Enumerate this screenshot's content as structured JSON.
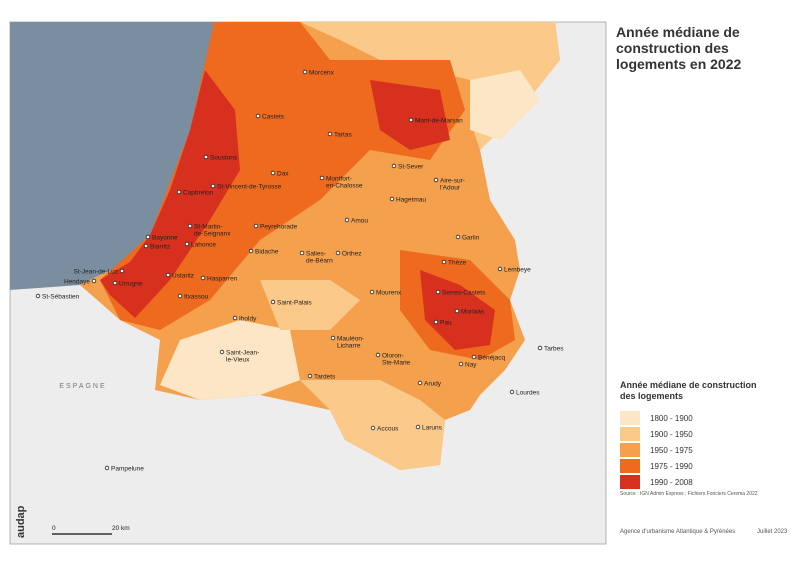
{
  "title": "Année médiane de construction des logements en 2022",
  "places": [
    {
      "lines": [
        "Morcenx"
      ]
    },
    {
      "lines": [
        "Castets"
      ]
    },
    {
      "lines": [
        "Mont-de-Marsan"
      ]
    },
    {
      "lines": [
        "Tartas"
      ]
    },
    {
      "lines": [
        "Soustons"
      ]
    },
    {
      "lines": [
        "St-Sever"
      ]
    },
    {
      "lines": [
        "Dax"
      ]
    },
    {
      "lines": [
        "Montfort-",
        "en-Chalosse"
      ]
    },
    {
      "lines": [
        "Aire-sur-",
        "l'Adour"
      ]
    },
    {
      "lines": [
        "St-Vincent-de-Tyrosse"
      ]
    },
    {
      "lines": [
        "Capbreton"
      ]
    },
    {
      "lines": [
        "Hagetmau"
      ]
    },
    {
      "lines": [
        "Amou"
      ]
    },
    {
      "lines": [
        "St-Martin-",
        "de-Seignanx"
      ]
    },
    {
      "lines": [
        "Peyrehorade"
      ]
    },
    {
      "lines": [
        "Garlin"
      ]
    },
    {
      "lines": [
        "Bayonne"
      ]
    },
    {
      "lines": [
        "Biarritz"
      ]
    },
    {
      "lines": [
        "Lahonce"
      ]
    },
    {
      "lines": [
        "Salies-",
        "de-Béarn"
      ]
    },
    {
      "lines": [
        "Orthez"
      ]
    },
    {
      "lines": [
        "Bidache"
      ]
    },
    {
      "lines": [
        "St-Jean-de-Luz"
      ]
    },
    {
      "lines": [
        "Hendaye"
      ]
    },
    {
      "lines": [
        "Urrugne"
      ]
    },
    {
      "lines": [
        "Ustaritz"
      ]
    },
    {
      "lines": [
        "Hasparren"
      ]
    },
    {
      "lines": [
        "Thèze"
      ]
    },
    {
      "lines": [
        "Lembeye"
      ]
    },
    {
      "lines": [
        "Mourenx"
      ]
    },
    {
      "lines": [
        "Serres-Castets"
      ]
    },
    {
      "lines": [
        "Itxassou"
      ]
    },
    {
      "lines": [
        "St-Sébastien"
      ]
    },
    {
      "lines": [
        "Saint-Palais"
      ]
    },
    {
      "lines": [
        "Iholdy"
      ]
    },
    {
      "lines": [
        "Morlaàs"
      ]
    },
    {
      "lines": [
        "Pau"
      ]
    },
    {
      "lines": [
        "Mauléon-",
        "Licharre"
      ]
    },
    {
      "lines": [
        "Saint-Jean-",
        "le-Vieux"
      ]
    },
    {
      "lines": [
        "Oloron-",
        "Ste-Marie"
      ]
    },
    {
      "lines": [
        "Tarbes"
      ]
    },
    {
      "lines": [
        "Bénéjacq"
      ]
    },
    {
      "lines": [
        "Nay"
      ]
    },
    {
      "lines": [
        "Tardets"
      ]
    },
    {
      "lines": [
        "Arudy"
      ]
    },
    {
      "lines": [
        "Lourdes"
      ]
    },
    {
      "lines": [
        "Accous"
      ]
    },
    {
      "lines": [
        "Laruns"
      ]
    },
    {
      "lines": [
        "Pampelune"
      ]
    }
  ],
  "country_label": "ESPAGNE",
  "legend": {
    "title": "Année médiane de construction des logements",
    "items": [
      {
        "label": "1800 - 1900",
        "color": "#fde6c6"
      },
      {
        "label": "1900 - 1950",
        "color": "#fbc98a"
      },
      {
        "label": "1950 - 1975",
        "color": "#f5a04c"
      },
      {
        "label": "1975 - 1990",
        "color": "#ee6a1e"
      },
      {
        "label": "1990 - 2008",
        "color": "#d7301f"
      }
    ]
  },
  "source": "Source : IGN Admin Express ; Fichiers Fonciers Cerema 2022",
  "agency": "Agence d'urbanisme Atlantique & Pyrénées",
  "date": "Juillet 2023",
  "scale": {
    "start": "0",
    "end": "20 km"
  },
  "logo": "audap"
}
